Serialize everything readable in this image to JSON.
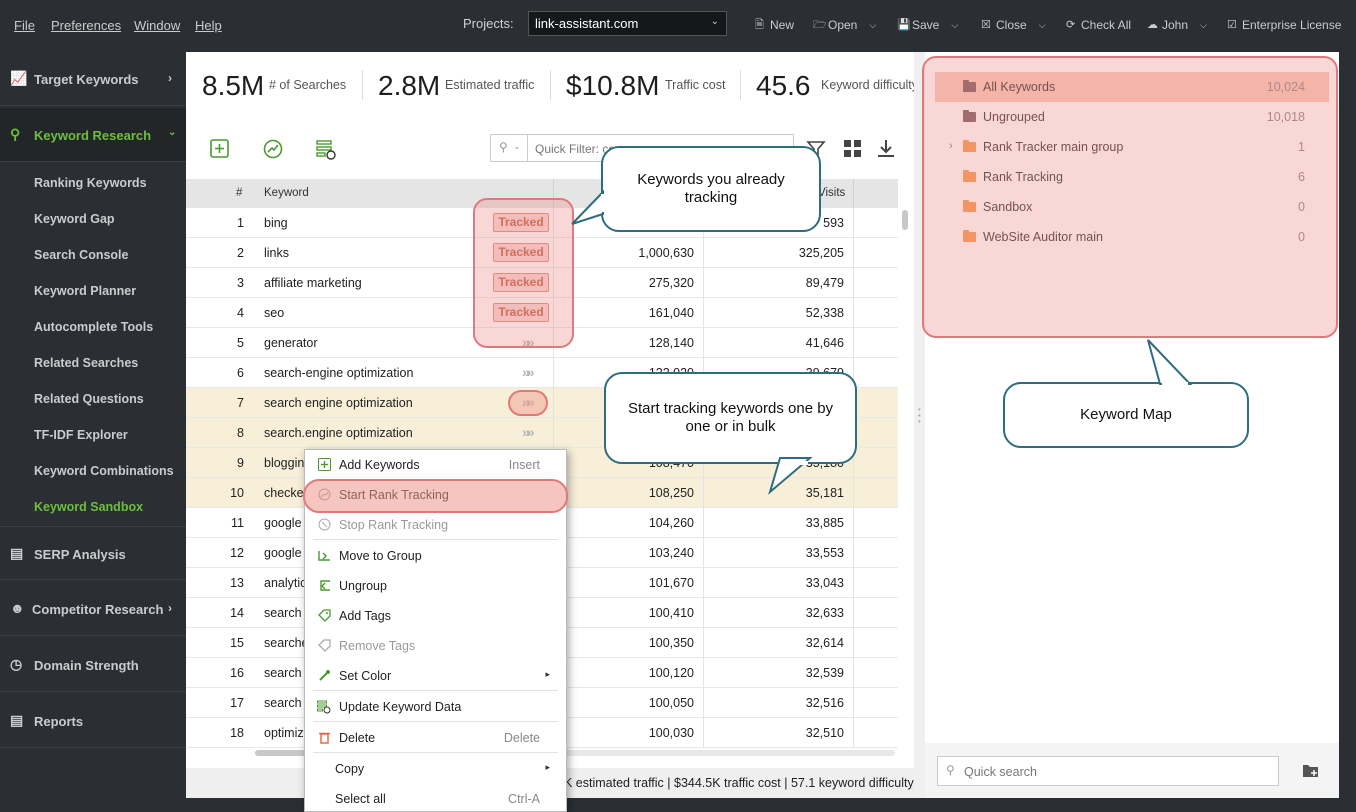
{
  "menubar": {
    "items": [
      "File",
      "Preferences",
      "Window",
      "Help"
    ],
    "projects_label": "Projects:",
    "project_value": "link-assistant.com",
    "toolbar": [
      "New",
      "Open",
      "Save",
      "Close",
      "Check All",
      "John",
      "Enterprise License"
    ]
  },
  "sidebar": {
    "main": [
      {
        "label": "Target Keywords",
        "icon": "trend-chart-icon"
      },
      {
        "label": "Keyword Research",
        "icon": "magnifier-icon"
      },
      {
        "label": "SERP Analysis",
        "icon": "bar-chart-icon"
      },
      {
        "label": "Competitor Research",
        "icon": "user-icon"
      },
      {
        "label": "Domain Strength",
        "icon": "gauge-icon"
      },
      {
        "label": "Reports",
        "icon": "report-icon"
      }
    ],
    "sub": [
      "Ranking Keywords",
      "Keyword Gap",
      "Search Console",
      "Keyword Planner",
      "Autocomplete Tools",
      "Related Searches",
      "Related Questions",
      "TF-IDF Explorer",
      "Keyword Combinations",
      "Keyword Sandbox"
    ],
    "accent_color": "#6cbf3b"
  },
  "stats": [
    {
      "value": "8.5M",
      "label": "# of Searches"
    },
    {
      "value": "2.8M",
      "label": "Estimated traffic"
    },
    {
      "value": "$10.8M",
      "label": "Traffic cost"
    },
    {
      "value": "45.6",
      "label": "Keyword difficulty"
    }
  ],
  "filter": {
    "placeholder": "Quick Filter: co..."
  },
  "table": {
    "headers": {
      "num": "#",
      "keyword": "Keyword",
      "visits": "Visits"
    },
    "tracked_label": "Tracked",
    "rows": [
      {
        "n": "1",
        "kw": "bing",
        "a": "",
        "b": "593",
        "state": "tracked"
      },
      {
        "n": "2",
        "kw": "links",
        "a": "1,000,630",
        "b": "325,205",
        "state": "tracked"
      },
      {
        "n": "3",
        "kw": "affiliate marketing",
        "a": "275,320",
        "b": "89,479",
        "state": "tracked"
      },
      {
        "n": "4",
        "kw": "seo",
        "a": "161,040",
        "b": "52,338",
        "state": "tracked"
      },
      {
        "n": "5",
        "kw": "generator",
        "a": "128,140",
        "b": "41,646",
        "state": "go"
      },
      {
        "n": "6",
        "kw": "search-engine optimization",
        "a": "122,020",
        "b": "39,679",
        "state": "go"
      },
      {
        "n": "7",
        "kw": "search engine optimization",
        "a": "",
        "b": "",
        "state": "go"
      },
      {
        "n": "8",
        "kw": "search.engine optimization",
        "a": "",
        "b": "",
        "state": "go"
      },
      {
        "n": "9",
        "kw": "bloggin",
        "a": "108,470",
        "b": "35,180",
        "state": ""
      },
      {
        "n": "10",
        "kw": "checke",
        "a": "108,250",
        "b": "35,181",
        "state": ""
      },
      {
        "n": "11",
        "kw": "google",
        "a": "104,260",
        "b": "33,885",
        "state": ""
      },
      {
        "n": "12",
        "kw": "google",
        "a": "103,240",
        "b": "33,553",
        "state": ""
      },
      {
        "n": "13",
        "kw": "analytic",
        "a": "101,670",
        "b": "33,043",
        "state": ""
      },
      {
        "n": "14",
        "kw": "search",
        "a": "100,410",
        "b": "32,633",
        "state": ""
      },
      {
        "n": "15",
        "kw": "searche",
        "a": "100,350",
        "b": "32,614",
        "state": ""
      },
      {
        "n": "16",
        "kw": "search",
        "a": "100,120",
        "b": "32,539",
        "state": ""
      },
      {
        "n": "17",
        "kw": "search",
        "a": "100,050",
        "b": "32,516",
        "state": ""
      },
      {
        "n": "18",
        "kw": "optimiz",
        "a": "100,030",
        "b": "32,510",
        "state": ""
      }
    ]
  },
  "status_text": "K estimated traffic | $344.5K traffic cost | 57.1 keyword difficulty",
  "groups": [
    {
      "name": "All Keywords",
      "count": "10,024",
      "color": "#7a5b5b"
    },
    {
      "name": "Ungrouped",
      "count": "10,018",
      "color": "#7a5b5b"
    },
    {
      "name": "Rank Tracker main group",
      "count": "1",
      "color": "#f59a4e"
    },
    {
      "name": "Rank Tracking",
      "count": "6",
      "color": "#f59a4e"
    },
    {
      "name": "Sandbox",
      "count": "0",
      "color": "#f59a4e"
    },
    {
      "name": "WebSite Auditor main",
      "count": "0",
      "color": "#f59a4e"
    }
  ],
  "quick_search": "Quick search",
  "context_menu": [
    {
      "label": "Add Keywords",
      "shortcut": "Insert",
      "icon": "plus-icon",
      "disabled": false
    },
    {
      "label": "Start Rank Tracking",
      "shortcut": "",
      "icon": "rank-track-icon",
      "disabled": false
    },
    {
      "label": "Stop Rank Tracking",
      "shortcut": "",
      "icon": "stop-track-icon",
      "disabled": true
    },
    {
      "label": "Move to Group",
      "shortcut": "",
      "icon": "move-icon",
      "disabled": false
    },
    {
      "label": "Ungroup",
      "shortcut": "",
      "icon": "ungroup-icon",
      "disabled": false
    },
    {
      "label": "Add Tags",
      "shortcut": "",
      "icon": "tag-icon",
      "disabled": false
    },
    {
      "label": "Remove Tags",
      "shortcut": "",
      "icon": "tag-remove-icon",
      "disabled": true
    },
    {
      "label": "Set Color",
      "shortcut": "",
      "icon": "color-picker-icon",
      "disabled": false
    },
    {
      "label": "Update Keyword Data",
      "shortcut": "",
      "icon": "update-icon",
      "disabled": false
    },
    {
      "label": "Delete",
      "shortcut": "Delete",
      "icon": "trash-icon",
      "disabled": false
    },
    {
      "label": "Copy",
      "shortcut": "",
      "icon": "",
      "disabled": false
    },
    {
      "label": "Select all",
      "shortcut": "Ctrl-A",
      "icon": "",
      "disabled": false
    }
  ],
  "callouts": {
    "tracked": "Keywords you already tracking",
    "start": "Start tracking keywords one by one or in bulk",
    "map": "Keyword Map"
  }
}
